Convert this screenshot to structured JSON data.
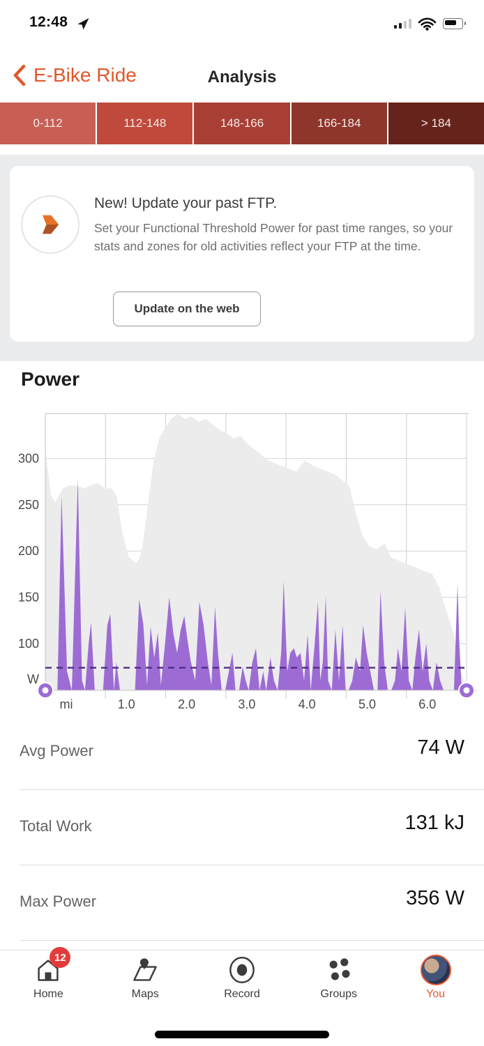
{
  "status_bar": {
    "time": "12:48"
  },
  "header": {
    "back_label": "E-Bike Ride",
    "title": "Analysis"
  },
  "zones": {
    "labels": [
      "0-112",
      "112-148",
      "148-166",
      "166-184",
      "> 184"
    ],
    "colors": [
      "#c75f55",
      "#bf4a3c",
      "#a83f35",
      "#8e352c",
      "#66231c"
    ]
  },
  "ftp_card": {
    "title": "New! Update your past FTP.",
    "body": "Set your Functional Threshold Power for past time ranges, so your stats and zones for old activities reflect your FTP at the time.",
    "button": "Update on the web"
  },
  "power_section": {
    "title": "Power"
  },
  "chart_data": {
    "type": "area",
    "title": "Power",
    "ylabel": "W",
    "xlabel": "mi",
    "x_ticks": [
      "mi",
      "1.0",
      "2.0",
      "3.0",
      "4.0",
      "5.0",
      "6.0"
    ],
    "y_ticks": [
      300,
      250,
      200,
      150,
      100
    ],
    "ylim_shown": [
      50,
      330
    ],
    "x_range_mi": [
      0,
      7.0
    ],
    "grid": true,
    "avg_power_w": 74,
    "colors": {
      "power_fill": "#9c6cd4",
      "avg_line": "#4f2d85",
      "elevation_fill": "#ececec",
      "gridline": "#d6d6d6",
      "axis": "#cfcfcf",
      "tick_text": "#4a4a4a",
      "handle": "#9c6cd4"
    },
    "series": [
      {
        "name": "power_w",
        "unit": "W",
        "points": [
          [
            0.06,
            0
          ],
          [
            0.2,
            0
          ],
          [
            0.27,
            260
          ],
          [
            0.36,
            70
          ],
          [
            0.44,
            45
          ],
          [
            0.54,
            278
          ],
          [
            0.61,
            60
          ],
          [
            0.66,
            0
          ],
          [
            0.72,
            100
          ],
          [
            0.76,
            123
          ],
          [
            0.82,
            40
          ],
          [
            0.88,
            0
          ],
          [
            0.96,
            0
          ],
          [
            1.03,
            120
          ],
          [
            1.08,
            132
          ],
          [
            1.14,
            30
          ],
          [
            1.18,
            80
          ],
          [
            1.24,
            0
          ],
          [
            1.33,
            0
          ],
          [
            1.43,
            0
          ],
          [
            1.49,
            40
          ],
          [
            1.56,
            148
          ],
          [
            1.63,
            120
          ],
          [
            1.69,
            55
          ],
          [
            1.75,
            118
          ],
          [
            1.81,
            85
          ],
          [
            1.87,
            112
          ],
          [
            1.92,
            55
          ],
          [
            1.99,
            100
          ],
          [
            2.06,
            150
          ],
          [
            2.13,
            110
          ],
          [
            2.19,
            90
          ],
          [
            2.25,
            115
          ],
          [
            2.31,
            130
          ],
          [
            2.36,
            105
          ],
          [
            2.42,
            80
          ],
          [
            2.49,
            60
          ],
          [
            2.56,
            145
          ],
          [
            2.63,
            120
          ],
          [
            2.7,
            80
          ],
          [
            2.76,
            55
          ],
          [
            2.82,
            140
          ],
          [
            2.87,
            90
          ],
          [
            2.93,
            50
          ],
          [
            2.99,
            0
          ],
          [
            3.05,
            70
          ],
          [
            3.11,
            90
          ],
          [
            3.16,
            40
          ],
          [
            3.22,
            0
          ],
          [
            3.28,
            75
          ],
          [
            3.33,
            60
          ],
          [
            3.38,
            0
          ],
          [
            3.44,
            80
          ],
          [
            3.5,
            95
          ],
          [
            3.56,
            40
          ],
          [
            3.62,
            70
          ],
          [
            3.67,
            0
          ],
          [
            3.74,
            85
          ],
          [
            3.8,
            60
          ],
          [
            3.86,
            0
          ],
          [
            3.92,
            90
          ],
          [
            3.96,
            168
          ],
          [
            4.02,
            70
          ],
          [
            4.07,
            90
          ],
          [
            4.13,
            95
          ],
          [
            4.18,
            85
          ],
          [
            4.24,
            90
          ],
          [
            4.3,
            60
          ],
          [
            4.36,
            110
          ],
          [
            4.41,
            30
          ],
          [
            4.47,
            95
          ],
          [
            4.53,
            145
          ],
          [
            4.57,
            60
          ],
          [
            4.61,
            80
          ],
          [
            4.66,
            151
          ],
          [
            4.7,
            60
          ],
          [
            4.76,
            0
          ],
          [
            4.82,
            115
          ],
          [
            4.88,
            60
          ],
          [
            4.94,
            120
          ],
          [
            4.99,
            40
          ],
          [
            5.04,
            0
          ],
          [
            5.1,
            60
          ],
          [
            5.16,
            85
          ],
          [
            5.23,
            70
          ],
          [
            5.28,
            120
          ],
          [
            5.34,
            90
          ],
          [
            5.4,
            70
          ],
          [
            5.46,
            50
          ],
          [
            5.52,
            0
          ],
          [
            5.57,
            157
          ],
          [
            5.63,
            80
          ],
          [
            5.69,
            50
          ],
          [
            5.75,
            0
          ],
          [
            5.81,
            60
          ],
          [
            5.86,
            95
          ],
          [
            5.92,
            70
          ],
          [
            5.98,
            139
          ],
          [
            6.04,
            60
          ],
          [
            6.1,
            0
          ],
          [
            6.15,
            85
          ],
          [
            6.21,
            115
          ],
          [
            6.27,
            70
          ],
          [
            6.33,
            100
          ],
          [
            6.38,
            60
          ],
          [
            6.44,
            40
          ],
          [
            6.5,
            80
          ],
          [
            6.56,
            60
          ],
          [
            6.62,
            0
          ],
          [
            6.67,
            30
          ],
          [
            6.73,
            20
          ],
          [
            6.79,
            0
          ],
          [
            6.85,
            164
          ],
          [
            6.88,
            100
          ],
          [
            6.92,
            40
          ],
          [
            6.95,
            0
          ],
          [
            7.0,
            0
          ]
        ]
      },
      {
        "name": "elevation_profile_relative",
        "unit": "fraction_of_plot_height",
        "points": [
          [
            0,
            0.88
          ],
          [
            0.06,
            0.76
          ],
          [
            0.1,
            0.7
          ],
          [
            0.17,
            0.68
          ],
          [
            0.29,
            0.73
          ],
          [
            0.4,
            0.74
          ],
          [
            0.52,
            0.74
          ],
          [
            0.64,
            0.73
          ],
          [
            0.75,
            0.74
          ],
          [
            0.87,
            0.75
          ],
          [
            0.99,
            0.73
          ],
          [
            1.1,
            0.73
          ],
          [
            1.19,
            0.7
          ],
          [
            1.27,
            0.58
          ],
          [
            1.39,
            0.48
          ],
          [
            1.51,
            0.46
          ],
          [
            1.57,
            0.48
          ],
          [
            1.62,
            0.53
          ],
          [
            1.68,
            0.63
          ],
          [
            1.74,
            0.73
          ],
          [
            1.8,
            0.83
          ],
          [
            1.89,
            0.91
          ],
          [
            1.97,
            0.94
          ],
          [
            2.09,
            0.98
          ],
          [
            2.2,
            1.0
          ],
          [
            2.32,
            0.98
          ],
          [
            2.43,
            0.99
          ],
          [
            2.55,
            0.97
          ],
          [
            2.67,
            0.98
          ],
          [
            2.78,
            0.96
          ],
          [
            2.9,
            0.94
          ],
          [
            3.01,
            0.93
          ],
          [
            3.13,
            0.91
          ],
          [
            3.24,
            0.92
          ],
          [
            3.36,
            0.89
          ],
          [
            3.48,
            0.87
          ],
          [
            3.59,
            0.85
          ],
          [
            3.71,
            0.83
          ],
          [
            3.82,
            0.82
          ],
          [
            3.94,
            0.81
          ],
          [
            4.06,
            0.8
          ],
          [
            4.17,
            0.79
          ],
          [
            4.31,
            0.83
          ],
          [
            4.46,
            0.81
          ],
          [
            4.58,
            0.8
          ],
          [
            4.69,
            0.79
          ],
          [
            4.81,
            0.78
          ],
          [
            4.93,
            0.76
          ],
          [
            5.05,
            0.74
          ],
          [
            5.16,
            0.64
          ],
          [
            5.27,
            0.56
          ],
          [
            5.39,
            0.52
          ],
          [
            5.5,
            0.51
          ],
          [
            5.64,
            0.53
          ],
          [
            5.74,
            0.48
          ],
          [
            5.86,
            0.47
          ],
          [
            5.97,
            0.46
          ],
          [
            6.09,
            0.45
          ],
          [
            6.2,
            0.44
          ],
          [
            6.31,
            0.43
          ],
          [
            6.43,
            0.42
          ],
          [
            6.55,
            0.37
          ],
          [
            6.66,
            0.29
          ],
          [
            6.78,
            0.21
          ],
          [
            6.84,
            0.14
          ],
          [
            6.89,
            0.08
          ],
          [
            6.95,
            0.04
          ],
          [
            6.99,
            0
          ]
        ]
      }
    ]
  },
  "stats": {
    "rows": [
      {
        "label": "Avg Power",
        "value": "74 W"
      },
      {
        "label": "Total Work",
        "value": "131 kJ"
      },
      {
        "label": "Max Power",
        "value": "356 W"
      }
    ]
  },
  "tab_bar": {
    "items": [
      {
        "label": "Home",
        "badge": "12"
      },
      {
        "label": "Maps"
      },
      {
        "label": "Record"
      },
      {
        "label": "Groups"
      },
      {
        "label": "You"
      }
    ]
  }
}
